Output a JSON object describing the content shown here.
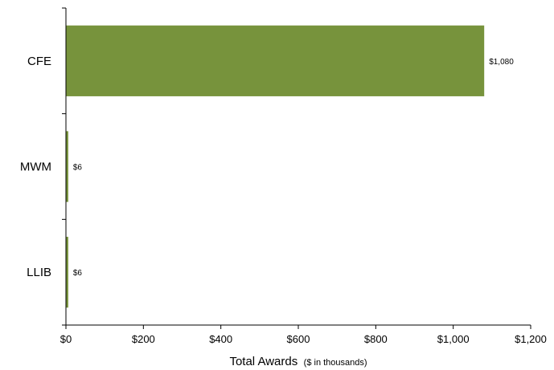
{
  "chart_data": {
    "type": "bar",
    "orientation": "horizontal",
    "categories": [
      "CFE",
      "MWM",
      "LLIB"
    ],
    "values": [
      1080,
      6,
      6
    ],
    "data_labels": [
      "$1,080",
      "$6",
      "$6"
    ],
    "title": "",
    "xlabel": "Total Awards",
    "xlabel_sub": "($ in thousands)",
    "ylabel": "",
    "xlim": [
      0,
      1200
    ],
    "x_ticks": [
      0,
      200,
      400,
      600,
      800,
      1000,
      1200
    ],
    "x_tick_labels": [
      "$0",
      "$200",
      "$400",
      "$600",
      "$800",
      "$1,000",
      "$1,200"
    ],
    "grid": false,
    "legend": "none",
    "bar_color": "#77933c"
  }
}
